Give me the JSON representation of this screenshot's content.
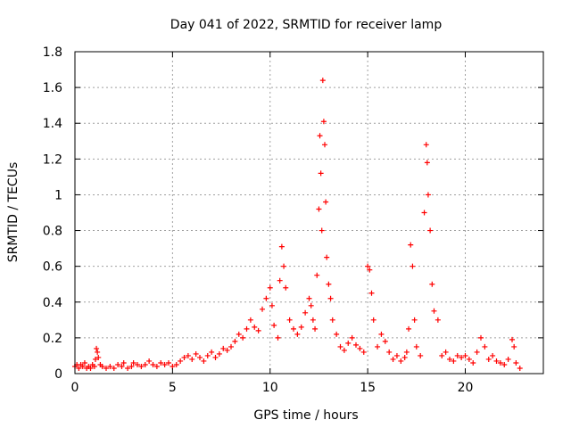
{
  "chart_data": {
    "type": "scatter",
    "title": "Day 041 of 2022, SRMTID for receiver lamp",
    "xlabel": "GPS time / hours",
    "ylabel": "SRMTID / TECUs",
    "xlim": [
      0,
      24
    ],
    "ylim": [
      0,
      1.8
    ],
    "xticks": [
      0,
      5,
      10,
      15,
      20
    ],
    "yticks": [
      0,
      0.2,
      0.4,
      0.6,
      0.8,
      1,
      1.2,
      1.4,
      1.6,
      1.8
    ],
    "xtick_labels": [
      "0",
      "5",
      "10",
      "15",
      "20"
    ],
    "ytick_labels": [
      "0",
      "0.2",
      "0.4",
      "0.6",
      "0.8",
      "1",
      "1.2",
      "1.4",
      "1.6",
      "1.8"
    ],
    "grid": true,
    "marker": "+",
    "color": "#ff0000",
    "series": [
      {
        "name": "SRMTID",
        "points": [
          [
            0.0,
            0.04
          ],
          [
            0.1,
            0.05
          ],
          [
            0.2,
            0.03
          ],
          [
            0.3,
            0.05
          ],
          [
            0.4,
            0.04
          ],
          [
            0.5,
            0.06
          ],
          [
            0.6,
            0.03
          ],
          [
            0.7,
            0.04
          ],
          [
            0.8,
            0.03
          ],
          [
            0.9,
            0.05
          ],
          [
            1.0,
            0.04
          ],
          [
            1.05,
            0.08
          ],
          [
            1.1,
            0.14
          ],
          [
            1.15,
            0.12
          ],
          [
            1.2,
            0.09
          ],
          [
            1.3,
            0.05
          ],
          [
            1.4,
            0.04
          ],
          [
            1.6,
            0.03
          ],
          [
            1.8,
            0.04
          ],
          [
            2.0,
            0.03
          ],
          [
            2.2,
            0.05
          ],
          [
            2.4,
            0.04
          ],
          [
            2.5,
            0.06
          ],
          [
            2.7,
            0.03
          ],
          [
            2.9,
            0.04
          ],
          [
            3.0,
            0.06
          ],
          [
            3.2,
            0.05
          ],
          [
            3.4,
            0.04
          ],
          [
            3.6,
            0.05
          ],
          [
            3.8,
            0.07
          ],
          [
            4.0,
            0.05
          ],
          [
            4.2,
            0.04
          ],
          [
            4.4,
            0.06
          ],
          [
            4.6,
            0.05
          ],
          [
            4.8,
            0.06
          ],
          [
            5.0,
            0.04
          ],
          [
            5.2,
            0.05
          ],
          [
            5.4,
            0.07
          ],
          [
            5.6,
            0.09
          ],
          [
            5.8,
            0.1
          ],
          [
            6.0,
            0.08
          ],
          [
            6.2,
            0.11
          ],
          [
            6.4,
            0.09
          ],
          [
            6.6,
            0.07
          ],
          [
            6.8,
            0.1
          ],
          [
            7.0,
            0.12
          ],
          [
            7.2,
            0.09
          ],
          [
            7.4,
            0.11
          ],
          [
            7.6,
            0.14
          ],
          [
            7.8,
            0.13
          ],
          [
            8.0,
            0.15
          ],
          [
            8.2,
            0.18
          ],
          [
            8.4,
            0.22
          ],
          [
            8.6,
            0.2
          ],
          [
            8.8,
            0.25
          ],
          [
            9.0,
            0.3
          ],
          [
            9.2,
            0.26
          ],
          [
            9.4,
            0.24
          ],
          [
            9.6,
            0.36
          ],
          [
            9.8,
            0.42
          ],
          [
            10.0,
            0.48
          ],
          [
            10.1,
            0.38
          ],
          [
            10.2,
            0.27
          ],
          [
            10.4,
            0.2
          ],
          [
            10.5,
            0.52
          ],
          [
            10.6,
            0.71
          ],
          [
            10.7,
            0.6
          ],
          [
            10.8,
            0.48
          ],
          [
            11.0,
            0.3
          ],
          [
            11.2,
            0.25
          ],
          [
            11.4,
            0.22
          ],
          [
            11.6,
            0.26
          ],
          [
            11.8,
            0.34
          ],
          [
            12.0,
            0.42
          ],
          [
            12.1,
            0.38
          ],
          [
            12.2,
            0.3
          ],
          [
            12.3,
            0.25
          ],
          [
            12.4,
            0.55
          ],
          [
            12.5,
            0.92
          ],
          [
            12.55,
            1.33
          ],
          [
            12.6,
            1.12
          ],
          [
            12.65,
            0.8
          ],
          [
            12.7,
            1.64
          ],
          [
            12.75,
            1.41
          ],
          [
            12.8,
            1.28
          ],
          [
            12.85,
            0.96
          ],
          [
            12.9,
            0.65
          ],
          [
            13.0,
            0.5
          ],
          [
            13.1,
            0.42
          ],
          [
            13.2,
            0.3
          ],
          [
            13.4,
            0.22
          ],
          [
            13.6,
            0.15
          ],
          [
            13.8,
            0.13
          ],
          [
            14.0,
            0.17
          ],
          [
            14.2,
            0.2
          ],
          [
            14.4,
            0.16
          ],
          [
            14.6,
            0.14
          ],
          [
            14.8,
            0.12
          ],
          [
            15.0,
            0.6
          ],
          [
            15.1,
            0.58
          ],
          [
            15.2,
            0.45
          ],
          [
            15.3,
            0.3
          ],
          [
            15.5,
            0.15
          ],
          [
            15.7,
            0.22
          ],
          [
            15.9,
            0.18
          ],
          [
            16.1,
            0.12
          ],
          [
            16.3,
            0.08
          ],
          [
            16.5,
            0.1
          ],
          [
            16.7,
            0.07
          ],
          [
            16.9,
            0.09
          ],
          [
            17.0,
            0.12
          ],
          [
            17.1,
            0.25
          ],
          [
            17.2,
            0.72
          ],
          [
            17.3,
            0.6
          ],
          [
            17.4,
            0.3
          ],
          [
            17.5,
            0.15
          ],
          [
            17.7,
            0.1
          ],
          [
            17.9,
            0.9
          ],
          [
            18.0,
            1.28
          ],
          [
            18.05,
            1.18
          ],
          [
            18.1,
            1.0
          ],
          [
            18.2,
            0.8
          ],
          [
            18.3,
            0.5
          ],
          [
            18.4,
            0.35
          ],
          [
            18.6,
            0.3
          ],
          [
            18.8,
            0.1
          ],
          [
            19.0,
            0.12
          ],
          [
            19.2,
            0.08
          ],
          [
            19.4,
            0.07
          ],
          [
            19.6,
            0.1
          ],
          [
            19.8,
            0.09
          ],
          [
            20.0,
            0.1
          ],
          [
            20.2,
            0.08
          ],
          [
            20.4,
            0.06
          ],
          [
            20.6,
            0.12
          ],
          [
            20.8,
            0.2
          ],
          [
            21.0,
            0.15
          ],
          [
            21.2,
            0.08
          ],
          [
            21.4,
            0.1
          ],
          [
            21.6,
            0.07
          ],
          [
            21.8,
            0.06
          ],
          [
            22.0,
            0.05
          ],
          [
            22.2,
            0.08
          ],
          [
            22.4,
            0.19
          ],
          [
            22.5,
            0.15
          ],
          [
            22.6,
            0.06
          ],
          [
            22.8,
            0.03
          ]
        ]
      }
    ]
  }
}
